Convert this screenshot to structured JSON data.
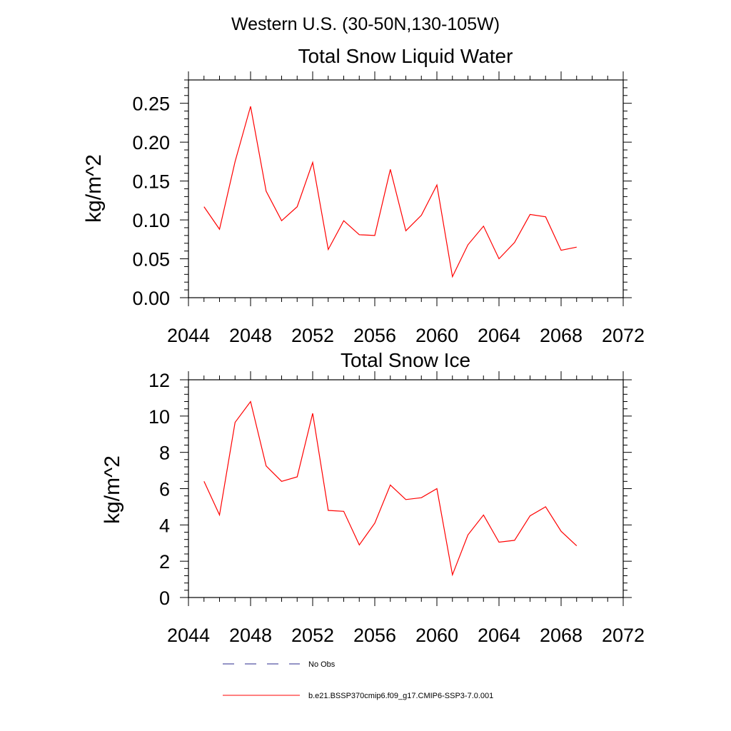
{
  "suptitle": "Western U.S. (30-50N,130-105W)",
  "colors": {
    "model_line": "#ff0000",
    "obs_line": "#2a2a8c",
    "axes": "#000000"
  },
  "chart_data": [
    {
      "type": "line",
      "title": "Total Snow Liquid Water",
      "xlabel": "",
      "ylabel": "kg/m^2",
      "xlim": [
        2044,
        2072
      ],
      "ylim": [
        0,
        0.28
      ],
      "xticks": [
        2044,
        2048,
        2052,
        2056,
        2060,
        2064,
        2068,
        2072
      ],
      "yticks": [
        0,
        0.05,
        0.1,
        0.15,
        0.2,
        0.25
      ],
      "ytick_labels": [
        "0.00",
        "0.05",
        "0.10",
        "0.15",
        "0.20",
        "0.25"
      ],
      "x": [
        2045,
        2046,
        2047,
        2048,
        2049,
        2050,
        2051,
        2052,
        2053,
        2054,
        2055,
        2056,
        2057,
        2058,
        2059,
        2060,
        2061,
        2062,
        2063,
        2064,
        2065,
        2066,
        2067,
        2068,
        2069
      ],
      "series": [
        {
          "name": "b.e21.BSSP370cmip6.f09_g17.CMIP6-SSP3-7.0.001",
          "values": [
            0.117,
            0.088,
            0.175,
            0.246,
            0.137,
            0.099,
            0.117,
            0.174,
            0.062,
            0.099,
            0.081,
            0.08,
            0.165,
            0.086,
            0.106,
            0.145,
            0.027,
            0.068,
            0.092,
            0.05,
            0.071,
            0.107,
            0.104,
            0.061,
            0.065
          ]
        }
      ]
    },
    {
      "type": "line",
      "title": "Total Snow Ice",
      "xlabel": "",
      "ylabel": "kg/m^2",
      "xlim": [
        2044,
        2072
      ],
      "ylim": [
        0,
        12
      ],
      "xticks": [
        2044,
        2048,
        2052,
        2056,
        2060,
        2064,
        2068,
        2072
      ],
      "yticks": [
        0,
        2,
        4,
        6,
        8,
        10,
        12
      ],
      "ytick_labels": [
        "0",
        "2",
        "4",
        "6",
        "8",
        "10",
        "12"
      ],
      "x": [
        2045,
        2046,
        2047,
        2048,
        2049,
        2050,
        2051,
        2052,
        2053,
        2054,
        2055,
        2056,
        2057,
        2058,
        2059,
        2060,
        2061,
        2062,
        2063,
        2064,
        2065,
        2066,
        2067,
        2068,
        2069
      ],
      "series": [
        {
          "name": "b.e21.BSSP370cmip6.f09_g17.CMIP6-SSP3-7.0.001",
          "values": [
            6.4,
            4.55,
            9.65,
            10.8,
            7.25,
            6.4,
            6.65,
            10.15,
            4.8,
            4.75,
            2.9,
            4.1,
            6.2,
            5.4,
            5.5,
            6.0,
            1.25,
            3.45,
            4.55,
            3.05,
            3.15,
            4.5,
            5.0,
            3.65,
            2.85
          ]
        }
      ]
    }
  ],
  "legend": {
    "placement": "bottom",
    "entries": [
      {
        "label": "No Obs",
        "style": "dashed"
      },
      {
        "label": "b.e21.BSSP370cmip6.f09_g17.CMIP6-SSP3-7.0.001",
        "style": "solid"
      }
    ]
  }
}
